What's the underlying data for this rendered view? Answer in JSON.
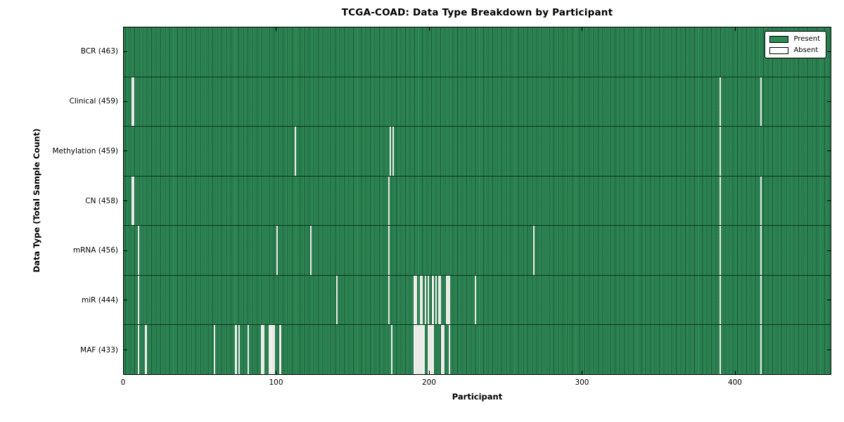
{
  "figure": {
    "background_color": "#ffffff"
  },
  "chart_data": {
    "type": "heatmap",
    "title": "TCGA-COAD: Data Type Breakdown by Participant",
    "xlabel": "Participant",
    "ylabel": "Data Type (Total Sample Count)",
    "n_participants": 463,
    "x_axis_range": [
      0,
      463
    ],
    "x_ticks": [
      0,
      100,
      200,
      300,
      400
    ],
    "x_tick_labels": [
      "0",
      "100",
      "200",
      "300",
      "400"
    ],
    "present_color": "#2e8b57",
    "absent_color": "#f6f6f4",
    "column_edge_color": "#123d26",
    "legend": {
      "position": "upper right",
      "entries": [
        {
          "label": "Present",
          "color": "#2e8b57"
        },
        {
          "label": "Absent",
          "color": "#ffffff"
        }
      ]
    },
    "rows": [
      {
        "name": "BCR",
        "label": "BCR (463)",
        "total": 463,
        "absent_participants": []
      },
      {
        "name": "Clinical",
        "label": "Clinical (459)",
        "total": 459,
        "absent_participants": [
          5,
          6,
          390,
          417
        ]
      },
      {
        "name": "Methylation",
        "label": "Methylation (459)",
        "total": 459,
        "absent_participants": [
          112,
          174,
          176,
          390
        ]
      },
      {
        "name": "CN",
        "label": "CN (458)",
        "total": 458,
        "absent_participants": [
          5,
          6,
          173,
          390,
          417
        ]
      },
      {
        "name": "mRNA",
        "label": "mRNA (456)",
        "total": 456,
        "absent_participants": [
          9,
          100,
          122,
          173,
          268,
          390,
          417
        ]
      },
      {
        "name": "miR",
        "label": "miR (444)",
        "total": 444,
        "absent_participants": [
          9,
          139,
          173,
          190,
          191,
          194,
          195,
          197,
          199,
          202,
          204,
          206,
          207,
          211,
          212,
          213,
          230,
          390,
          417
        ]
      },
      {
        "name": "MAF",
        "label": "MAF (433)",
        "total": 433,
        "absent_participants": [
          9,
          14,
          59,
          73,
          75,
          81,
          90,
          91,
          95,
          96,
          97,
          98,
          102,
          175,
          190,
          191,
          192,
          193,
          194,
          195,
          196,
          199,
          200,
          201,
          202,
          208,
          209,
          213,
          390,
          417
        ]
      }
    ]
  }
}
